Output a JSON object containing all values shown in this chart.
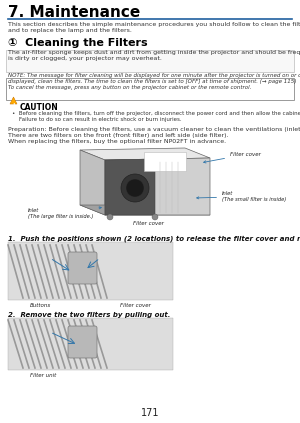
{
  "page_number": "171",
  "background_color": "#ffffff",
  "title": "7. Maintenance",
  "blue_line_color": "#2060a0",
  "section_heading": "①  Cleaning the Filters",
  "body_text_1": "This section describes the simple maintenance procedures you should follow to clean the filters, the lens, the cabinet,\nand to replace the lamp and the filters.",
  "body_text_2": "The air-filter sponge keeps dust and dirt from getting inside the projector and should be frequently cleaned. If the filter\nis dirty or clogged, your projector may overheat.",
  "note_text": "NOTE: The message for filter cleaning will be displayed for one minute after the projector is turned on or off. When the message is\ndisplayed, clean the filters. The time to clean the filters is set to [OFF] at time of shipment. (→ page 115)\nTo cancel the message, press any button on the projector cabinet or the remote control.",
  "caution_bullet": "•  Before cleaning the filters, turn off the projector, disconnect the power cord and then allow the cabinet to cool.\n    Failure to do so can result in electric shock or burn injuries.",
  "prep_text": "Preparation: Before cleaning the filters, use a vacuum cleaner to clean the ventilations (inlet).\nThere are two filters on the front (front filter) and left side (side filter).\nWhen replacing the filters, buy the optional filter NP02FT in advance.",
  "step1_text": "1.  Push the positions shown (2 locations) to release the filter cover and remove it.",
  "step2_text": "2.  Remove the two filters by pulling out.",
  "label_filter_cover_top": "Filter cover",
  "label_inlet_small": "Inlet\n(The small filter is inside)",
  "label_filter_cover_bottom": "Filter cover",
  "label_inlet_large": "Inlet\n(The large filter is inside.)",
  "label_buttons": "Buttons",
  "label_filter_cover2": "Filter cover",
  "label_filter_unit": "Filter unit"
}
